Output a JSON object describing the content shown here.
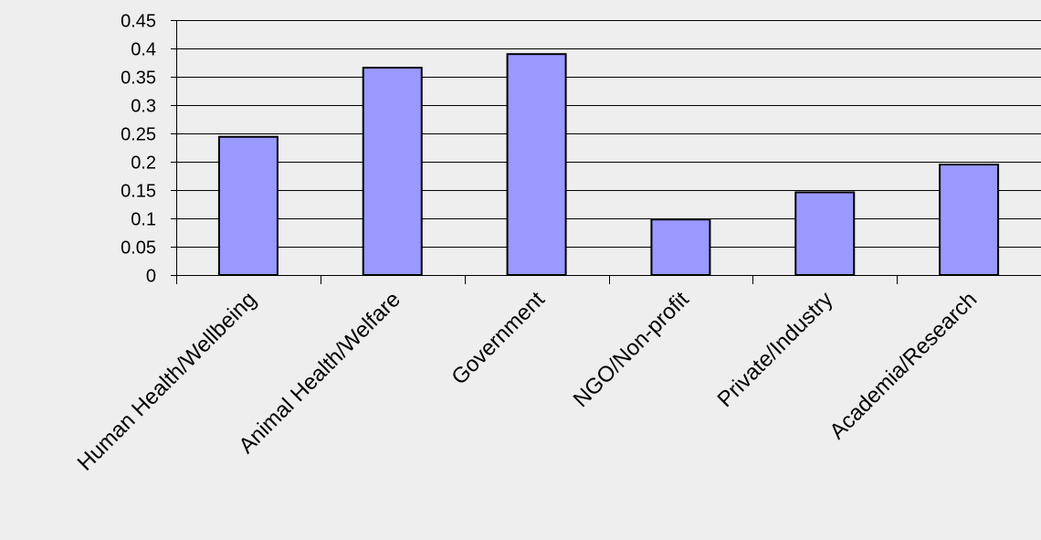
{
  "chart_data": {
    "type": "bar",
    "title": "",
    "xlabel": "",
    "ylabel": "",
    "categories": [
      "Human Health/Wellbeing",
      "Animal Health/Welfare",
      "Government",
      "NGO/Non-profit",
      "Private/Industry",
      "Academia/Research"
    ],
    "values": [
      0.244,
      0.366,
      0.39,
      0.098,
      0.146,
      0.195
    ],
    "ylim": [
      0,
      0.45
    ],
    "yticks": [
      "0",
      "0.05",
      "0.1",
      "0.15",
      "0.2",
      "0.25",
      "0.3",
      "0.35",
      "0.4",
      "0.45"
    ],
    "grid": true,
    "legend": "none",
    "colors": {
      "bar_fill": "#9999ff",
      "bar_stroke": "#000000",
      "grid": "#000000",
      "background": "#eeeeee"
    }
  }
}
